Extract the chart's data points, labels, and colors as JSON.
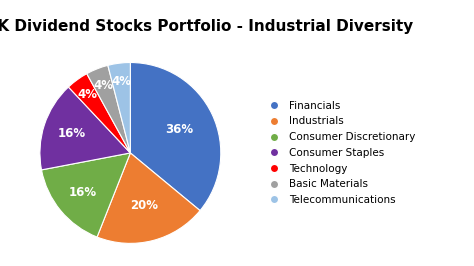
{
  "title": "UK Dividend Stocks Portfolio - Industrial Diversity",
  "labels": [
    "Financials",
    "Industrials",
    "Consumer Discretionary",
    "Consumer Staples",
    "Technology",
    "Basic Materials",
    "Telecommunications"
  ],
  "values": [
    36,
    20,
    16,
    16,
    4,
    4,
    4
  ],
  "colors": [
    "#4472C4",
    "#ED7D31",
    "#70AD47",
    "#7030A0",
    "#FF0000",
    "#A0A0A0",
    "#9DC3E6"
  ],
  "startangle": 90,
  "pct_labels": [
    "36%",
    "20%",
    "16%",
    "16%",
    "4%",
    "4%",
    "4%"
  ],
  "title_fontsize": 11,
  "legend_fontsize": 7.5,
  "pct_fontsize": 8.5,
  "background_color": "#FFFFFF"
}
